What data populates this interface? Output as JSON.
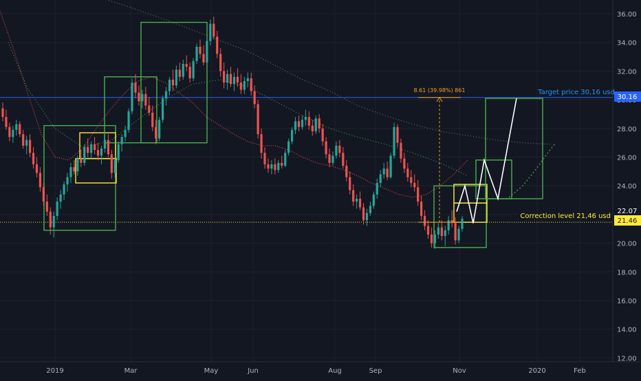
{
  "chart_data": {
    "type": "candlestick",
    "colors": {
      "background": "#131722",
      "up": "#26a69a",
      "down": "#ef5350",
      "target_line": "#2962ff",
      "correction_line": "#ffeb3b",
      "box_green": "#4caf50",
      "box_yellow": "#ffeb3b",
      "projection": "#ffffff",
      "ma_red": "#ef5350",
      "ma_green": "#4caf50",
      "ma_gray": "#787b86",
      "measure": "#f7a21b",
      "axis_text": "#b2b5be"
    },
    "y_axis": {
      "ticks": [
        12.0,
        14.0,
        16.0,
        18.0,
        20.0,
        22.0,
        24.0,
        26.0,
        28.0,
        30.0,
        32.0,
        34.0,
        36.0
      ],
      "tick_labels": [
        "12.00",
        "14.00",
        "16.00",
        "18.00",
        "20.00",
        "22.00",
        "24.00",
        "26.00",
        "28.00",
        "30.00",
        "32.00",
        "34.00",
        "36.00"
      ],
      "range": [
        11,
        37
      ]
    },
    "x_axis": {
      "labels": [
        "2019",
        "Mar",
        "May",
        "Jun",
        "Aug",
        "Sep",
        "Nov",
        "2020",
        "Feb"
      ]
    },
    "price_tags": [
      {
        "label": "30.16",
        "value": 30.16,
        "style": "blue"
      },
      {
        "label": "22.07",
        "value": 22.07,
        "style": "plain"
      },
      {
        "label": "21.46",
        "value": 21.46,
        "style": "yellow"
      }
    ],
    "target_line": {
      "value": 30.16,
      "label": "Target price 30,16 usd"
    },
    "correction_line": {
      "value": 21.46,
      "label": "Correction level 21,46 usd"
    },
    "measure_label": "8.61 (39.98%) 861",
    "ohlc": [
      [
        29.4,
        29.8,
        28.5,
        28.8
      ],
      [
        28.8,
        29.3,
        27.9,
        28.1
      ],
      [
        28.1,
        28.4,
        27.1,
        27.4
      ],
      [
        27.4,
        28.2,
        27.0,
        27.9
      ],
      [
        27.9,
        28.6,
        27.5,
        28.3
      ],
      [
        28.3,
        28.5,
        27.4,
        27.6
      ],
      [
        27.6,
        27.9,
        26.6,
        26.8
      ],
      [
        26.8,
        27.5,
        26.2,
        27.2
      ],
      [
        27.2,
        27.6,
        26.0,
        26.3
      ],
      [
        26.3,
        26.7,
        25.2,
        25.5
      ],
      [
        25.5,
        26.0,
        24.6,
        24.9
      ],
      [
        24.9,
        25.3,
        23.6,
        23.9
      ],
      [
        23.9,
        24.2,
        22.6,
        22.9
      ],
      [
        22.9,
        23.4,
        21.9,
        22.2
      ],
      [
        22.2,
        22.5,
        20.6,
        21.1
      ],
      [
        21.1,
        22.2,
        20.4,
        21.9
      ],
      [
        21.9,
        23.2,
        21.6,
        22.9
      ],
      [
        22.9,
        23.7,
        22.4,
        23.4
      ],
      [
        23.4,
        24.3,
        23.0,
        24.1
      ],
      [
        24.1,
        24.9,
        23.6,
        24.6
      ],
      [
        24.6,
        25.6,
        24.2,
        25.3
      ],
      [
        25.3,
        25.8,
        24.8,
        25.0
      ],
      [
        25.0,
        26.1,
        24.7,
        25.9
      ],
      [
        25.9,
        26.5,
        25.3,
        25.6
      ],
      [
        25.6,
        26.9,
        25.4,
        26.7
      ],
      [
        26.7,
        27.3,
        26.0,
        26.3
      ],
      [
        26.3,
        27.1,
        25.9,
        26.9
      ],
      [
        26.9,
        27.4,
        26.2,
        26.5
      ],
      [
        26.5,
        27.0,
        25.8,
        26.1
      ],
      [
        26.1,
        26.8,
        25.5,
        26.6
      ],
      [
        26.6,
        27.5,
        26.3,
        27.2
      ],
      [
        27.2,
        27.6,
        26.0,
        26.2
      ],
      [
        26.2,
        26.5,
        24.5,
        24.9
      ],
      [
        24.9,
        26.2,
        24.6,
        25.8
      ],
      [
        25.8,
        27.1,
        25.6,
        26.9
      ],
      [
        26.9,
        27.6,
        26.4,
        27.4
      ],
      [
        27.4,
        28.2,
        27.1,
        27.9
      ],
      [
        27.9,
        29.4,
        27.7,
        29.2
      ],
      [
        29.2,
        31.5,
        29.0,
        31.2
      ],
      [
        31.2,
        31.8,
        30.1,
        30.5
      ],
      [
        30.5,
        31.0,
        29.6,
        29.9
      ],
      [
        29.9,
        30.7,
        29.4,
        30.4
      ],
      [
        30.4,
        30.9,
        29.3,
        29.6
      ],
      [
        29.6,
        30.2,
        28.9,
        29.1
      ],
      [
        29.1,
        29.6,
        27.8,
        28.1
      ],
      [
        28.1,
        28.6,
        26.9,
        27.3
      ],
      [
        27.3,
        28.8,
        27.1,
        28.6
      ],
      [
        28.6,
        30.3,
        28.4,
        30.1
      ],
      [
        30.1,
        30.9,
        29.6,
        30.6
      ],
      [
        30.6,
        31.6,
        30.3,
        31.4
      ],
      [
        31.4,
        32.1,
        30.6,
        31.0
      ],
      [
        31.0,
        32.4,
        30.8,
        32.1
      ],
      [
        32.1,
        32.6,
        31.3,
        31.6
      ],
      [
        31.6,
        32.8,
        31.4,
        32.5
      ],
      [
        32.5,
        33.1,
        32.0,
        32.3
      ],
      [
        32.3,
        32.6,
        31.2,
        31.5
      ],
      [
        31.5,
        32.9,
        31.3,
        32.7
      ],
      [
        32.7,
        33.9,
        32.5,
        33.7
      ],
      [
        33.7,
        34.2,
        32.9,
        33.2
      ],
      [
        33.2,
        33.8,
        32.4,
        32.6
      ],
      [
        32.6,
        34.4,
        32.4,
        34.1
      ],
      [
        34.1,
        35.6,
        33.8,
        35.3
      ],
      [
        35.3,
        35.8,
        34.2,
        34.4
      ],
      [
        34.4,
        34.8,
        32.9,
        33.2
      ],
      [
        33.2,
        33.6,
        31.6,
        32.0
      ],
      [
        32.0,
        32.6,
        30.8,
        31.2
      ],
      [
        31.2,
        32.1,
        30.7,
        31.8
      ],
      [
        31.8,
        32.3,
        30.9,
        31.1
      ],
      [
        31.1,
        31.9,
        30.6,
        31.6
      ],
      [
        31.6,
        32.2,
        30.9,
        31.2
      ],
      [
        31.2,
        31.8,
        30.4,
        30.7
      ],
      [
        30.7,
        31.6,
        30.4,
        31.3
      ],
      [
        31.3,
        31.9,
        30.9,
        31.5
      ],
      [
        31.5,
        31.9,
        30.3,
        30.6
      ],
      [
        30.6,
        31.0,
        29.4,
        29.7
      ],
      [
        29.7,
        30.0,
        27.3,
        27.6
      ],
      [
        27.6,
        28.0,
        25.9,
        26.3
      ],
      [
        26.3,
        26.7,
        25.2,
        25.5
      ],
      [
        25.5,
        25.9,
        24.9,
        25.2
      ],
      [
        25.2,
        25.8,
        24.8,
        25.5
      ],
      [
        25.5,
        25.9,
        24.8,
        25.1
      ],
      [
        25.1,
        25.8,
        24.9,
        25.6
      ],
      [
        25.6,
        26.1,
        25.2,
        25.4
      ],
      [
        25.4,
        26.5,
        25.3,
        26.3
      ],
      [
        26.3,
        27.3,
        26.1,
        27.1
      ],
      [
        27.1,
        28.1,
        26.9,
        27.9
      ],
      [
        27.9,
        28.8,
        27.6,
        28.5
      ],
      [
        28.5,
        28.9,
        27.8,
        28.1
      ],
      [
        28.1,
        28.9,
        27.9,
        28.6
      ],
      [
        28.6,
        29.3,
        28.2,
        28.8
      ],
      [
        28.8,
        29.2,
        27.9,
        28.2
      ],
      [
        28.2,
        28.6,
        27.5,
        27.8
      ],
      [
        27.8,
        28.9,
        27.6,
        28.7
      ],
      [
        28.7,
        29.0,
        27.7,
        28.0
      ],
      [
        28.0,
        28.3,
        26.8,
        27.1
      ],
      [
        27.1,
        27.4,
        25.9,
        26.2
      ],
      [
        26.2,
        26.6,
        25.3,
        25.6
      ],
      [
        25.6,
        26.4,
        25.4,
        26.1
      ],
      [
        26.1,
        27.1,
        25.9,
        26.8
      ],
      [
        26.8,
        27.2,
        26.0,
        26.3
      ],
      [
        26.3,
        26.7,
        25.2,
        25.4
      ],
      [
        25.4,
        25.8,
        24.3,
        24.6
      ],
      [
        24.6,
        25.0,
        23.4,
        23.7
      ],
      [
        23.7,
        24.1,
        22.6,
        22.9
      ],
      [
        22.9,
        23.4,
        22.4,
        23.1
      ],
      [
        23.1,
        23.6,
        22.3,
        22.5
      ],
      [
        22.5,
        22.8,
        21.3,
        21.6
      ],
      [
        21.6,
        22.4,
        21.2,
        22.1
      ],
      [
        22.1,
        22.9,
        21.9,
        22.6
      ],
      [
        22.6,
        23.6,
        22.4,
        23.4
      ],
      [
        23.4,
        24.5,
        23.1,
        24.2
      ],
      [
        24.2,
        25.1,
        23.9,
        24.8
      ],
      [
        24.8,
        25.6,
        24.5,
        25.2
      ],
      [
        25.2,
        25.7,
        24.4,
        24.6
      ],
      [
        24.6,
        26.3,
        24.5,
        26.1
      ],
      [
        26.1,
        28.4,
        25.9,
        28.1
      ],
      [
        28.1,
        28.3,
        26.7,
        27.0
      ],
      [
        27.0,
        27.3,
        25.6,
        25.9
      ],
      [
        25.9,
        26.3,
        24.9,
        25.2
      ],
      [
        25.2,
        25.6,
        24.3,
        24.6
      ],
      [
        24.6,
        25.1,
        23.9,
        24.2
      ],
      [
        24.2,
        24.8,
        23.6,
        23.9
      ],
      [
        23.9,
        24.4,
        22.6,
        22.9
      ],
      [
        22.9,
        23.3,
        21.6,
        21.9
      ],
      [
        21.9,
        22.3,
        20.9,
        21.2
      ],
      [
        21.2,
        21.6,
        20.3,
        20.6
      ],
      [
        20.6,
        21.1,
        19.7,
        20.0
      ],
      [
        20.0,
        20.9,
        19.6,
        20.6
      ],
      [
        20.6,
        21.4,
        20.3,
        21.1
      ],
      [
        21.1,
        21.6,
        20.2,
        20.5
      ],
      [
        20.5,
        21.2,
        19.8,
        20.9
      ],
      [
        20.9,
        21.9,
        20.6,
        21.6
      ],
      [
        21.6,
        22.3,
        21.1,
        21.4
      ],
      [
        21.4,
        21.8,
        19.9,
        20.2
      ],
      [
        20.2,
        21.2,
        20.0,
        21.0
      ],
      [
        21.0,
        21.9,
        20.8,
        21.7
      ]
    ],
    "ma_red": [
      [
        0,
        36.2
      ],
      [
        10,
        33.5
      ],
      [
        20,
        30.5
      ],
      [
        30,
        27.6
      ],
      [
        40,
        26.0
      ],
      [
        50,
        25.8
      ],
      [
        60,
        26.6
      ],
      [
        70,
        28.0
      ],
      [
        80,
        29.3
      ],
      [
        90,
        30.4
      ],
      [
        100,
        31.3
      ],
      [
        110,
        31.6
      ],
      [
        120,
        31.2
      ],
      [
        130,
        30.5
      ],
      [
        140,
        29.8
      ],
      [
        150,
        28.8
      ],
      [
        160,
        28.2
      ],
      [
        170,
        27.6
      ],
      [
        180,
        27.1
      ],
      [
        190,
        26.8
      ],
      [
        200,
        26.8
      ],
      [
        210,
        26.5
      ],
      [
        220,
        26.0
      ],
      [
        230,
        25.6
      ],
      [
        240,
        25.4
      ],
      [
        250,
        25.1
      ],
      [
        260,
        24.7
      ],
      [
        270,
        24.2
      ],
      [
        280,
        23.8
      ],
      [
        290,
        23.4
      ],
      [
        300,
        23.2
      ],
      [
        310,
        23.4
      ],
      [
        320,
        24.0
      ],
      [
        330,
        24.8
      ],
      [
        340,
        25.8
      ]
    ],
    "ma_green": [
      [
        6,
        34.0
      ],
      [
        20,
        30.8
      ],
      [
        40,
        28.0
      ],
      [
        60,
        26.7
      ],
      [
        80,
        27.1
      ],
      [
        100,
        28.6
      ],
      [
        120,
        30.0
      ],
      [
        140,
        31.1
      ],
      [
        160,
        31.4
      ],
      [
        180,
        30.9
      ],
      [
        200,
        29.9
      ],
      [
        220,
        28.9
      ],
      [
        240,
        28.0
      ],
      [
        260,
        27.4
      ],
      [
        280,
        26.9
      ],
      [
        300,
        26.3
      ],
      [
        320,
        25.6
      ],
      [
        340,
        24.7
      ]
    ],
    "ma_gray": [
      [
        60,
        37.5
      ],
      [
        90,
        36.6
      ],
      [
        120,
        35.6
      ],
      [
        150,
        34.5
      ],
      [
        180,
        33.4
      ],
      [
        200,
        32.4
      ],
      [
        220,
        31.4
      ],
      [
        240,
        30.6
      ],
      [
        260,
        29.6
      ],
      [
        280,
        28.9
      ],
      [
        300,
        28.3
      ],
      [
        320,
        27.8
      ],
      [
        340,
        27.5
      ],
      [
        360,
        27.2
      ],
      [
        380,
        27.0
      ],
      [
        400,
        26.9
      ]
    ],
    "boxes": [
      {
        "color": "green",
        "x0": 64,
        "x1": 168,
        "y0": 20.9,
        "y1": 28.2
      },
      {
        "color": "yellow",
        "x0": 116,
        "x1": 168,
        "y0": 25.9,
        "y1": 27.7
      },
      {
        "color": "yellow",
        "x0": 110,
        "x1": 169,
        "y0": 24.2,
        "y1": 25.9
      },
      {
        "color": "green",
        "x0": 152,
        "x1": 228,
        "y0": 27.0,
        "y1": 31.6
      },
      {
        "color": "green",
        "x0": 205,
        "x1": 301,
        "y0": 27.0,
        "y1": 35.4
      },
      {
        "color": "green",
        "x0": 631,
        "x1": 707,
        "y0": 19.7,
        "y1": 24.0
      },
      {
        "color": "yellow",
        "x0": 660,
        "x1": 708,
        "y0": 22.8,
        "y1": 24.1
      },
      {
        "color": "yellow",
        "x0": 660,
        "x1": 708,
        "y0": 21.46,
        "y1": 22.8
      },
      {
        "color": "green",
        "x0": 692,
        "x1": 744,
        "y0": 23.1,
        "y1": 25.8
      },
      {
        "color": "green",
        "x0": 706,
        "x1": 789,
        "y0": 23.1,
        "y1": 30.1
      }
    ],
    "projection": [
      [
        664,
        22.2
      ],
      [
        676,
        24.0
      ],
      [
        688,
        21.4
      ],
      [
        704,
        25.8
      ],
      [
        724,
        23.1
      ],
      [
        751,
        30.1
      ]
    ],
    "projection_dotted": [
      [
        740,
        23.2
      ],
      [
        760,
        24.0
      ],
      [
        780,
        25.2
      ],
      [
        798,
        26.4
      ],
      [
        808,
        27.0
      ]
    ]
  }
}
